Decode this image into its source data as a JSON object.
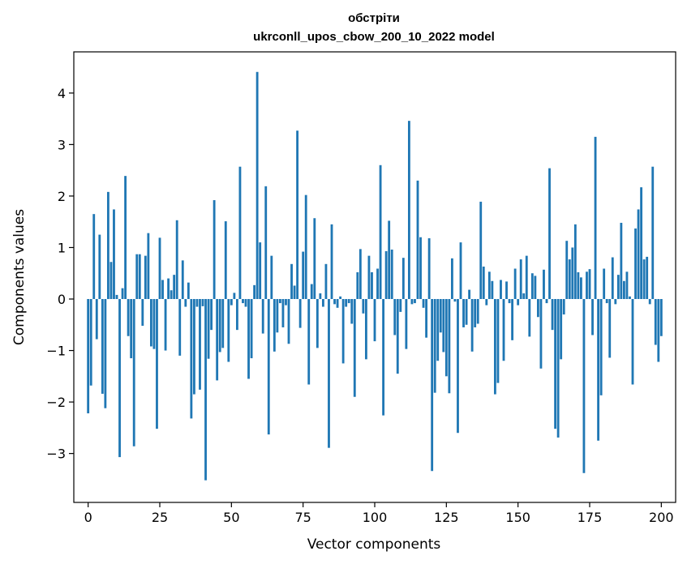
{
  "chart_data": {
    "type": "bar",
    "title": "обстріти",
    "subtitle": "ukrconll_upos_cbow_200_10_2022 model",
    "xlabel": "Vector components",
    "ylabel": "Components values",
    "xlim": [
      -5,
      205
    ],
    "ylim": [
      -3.95,
      4.8
    ],
    "xticks": [
      0,
      25,
      50,
      75,
      100,
      125,
      150,
      175,
      200
    ],
    "yticks": [
      -3,
      -2,
      -1,
      0,
      1,
      2,
      3,
      4
    ],
    "xtick_labels": [
      "0",
      "25",
      "50",
      "75",
      "100",
      "125",
      "150",
      "175",
      "200"
    ],
    "ytick_labels": [
      "−3",
      "−2",
      "−1",
      "0",
      "1",
      "2",
      "3",
      "4"
    ],
    "bar_color": "#1f77b4",
    "values": [
      -2.22,
      -1.68,
      1.65,
      -0.78,
      1.25,
      -1.84,
      -2.12,
      2.08,
      0.72,
      1.74,
      0.08,
      -3.07,
      0.21,
      2.39,
      -0.72,
      -1.15,
      -2.86,
      0.87,
      0.87,
      -0.52,
      0.84,
      1.28,
      -0.92,
      -0.97,
      -2.52,
      1.19,
      0.37,
      -1.0,
      0.4,
      0.17,
      0.47,
      1.53,
      -1.1,
      0.75,
      -0.15,
      0.32,
      -2.32,
      -1.85,
      -0.15,
      -1.76,
      -0.14,
      -3.52,
      -1.16,
      -0.6,
      1.92,
      -1.58,
      -1.03,
      -0.95,
      1.51,
      -1.22,
      -0.12,
      0.12,
      -0.6,
      2.57,
      -0.08,
      -0.15,
      -1.55,
      -1.15,
      0.27,
      4.41,
      1.1,
      -0.67,
      2.19,
      -2.63,
      0.84,
      -1.02,
      -0.65,
      -0.08,
      -0.55,
      -0.12,
      -0.87,
      0.68,
      0.26,
      3.27,
      -0.56,
      0.92,
      2.02,
      -1.66,
      0.29,
      1.57,
      -0.95,
      0.11,
      -0.15,
      0.68,
      -2.89,
      1.45,
      -0.1,
      -0.17,
      0.05,
      -1.25,
      -0.15,
      -0.08,
      -0.48,
      -1.9,
      0.52,
      0.97,
      -0.28,
      -1.17,
      0.84,
      0.52,
      -0.82,
      0.59,
      2.6,
      -2.26,
      0.93,
      1.52,
      0.96,
      -0.7,
      -1.45,
      -0.25,
      0.8,
      -0.97,
      3.46,
      -0.1,
      -0.08,
      2.3,
      1.2,
      -0.17,
      -0.75,
      1.18,
      -3.34,
      -1.82,
      -1.2,
      -0.65,
      -1.03,
      -1.5,
      -1.83,
      0.79,
      -0.05,
      -2.6,
      1.1,
      -0.55,
      -0.5,
      0.18,
      -1.02,
      -0.55,
      -0.48,
      1.89,
      0.63,
      -0.12,
      0.53,
      0.35,
      -1.85,
      -1.63,
      0.37,
      -1.2,
      0.34,
      -0.08,
      -0.8,
      0.59,
      -0.12,
      0.77,
      0.11,
      0.84,
      -0.73,
      0.5,
      0.45,
      -0.35,
      -1.35,
      0.57,
      -0.08,
      2.54,
      -0.6,
      -2.52,
      -2.69,
      -1.17,
      -0.3,
      1.13,
      0.77,
      1.0,
      1.45,
      0.52,
      0.42,
      -3.38,
      0.53,
      0.58,
      -0.7,
      3.15,
      -2.75,
      -1.87,
      0.59,
      -0.08,
      -1.14,
      0.81,
      -0.1,
      0.47,
      1.48,
      0.35,
      0.53,
      0.05,
      -1.66,
      1.37,
      1.74,
      2.17,
      0.77,
      0.82,
      -0.1,
      2.57,
      -0.89,
      -1.22,
      -0.72
    ]
  }
}
